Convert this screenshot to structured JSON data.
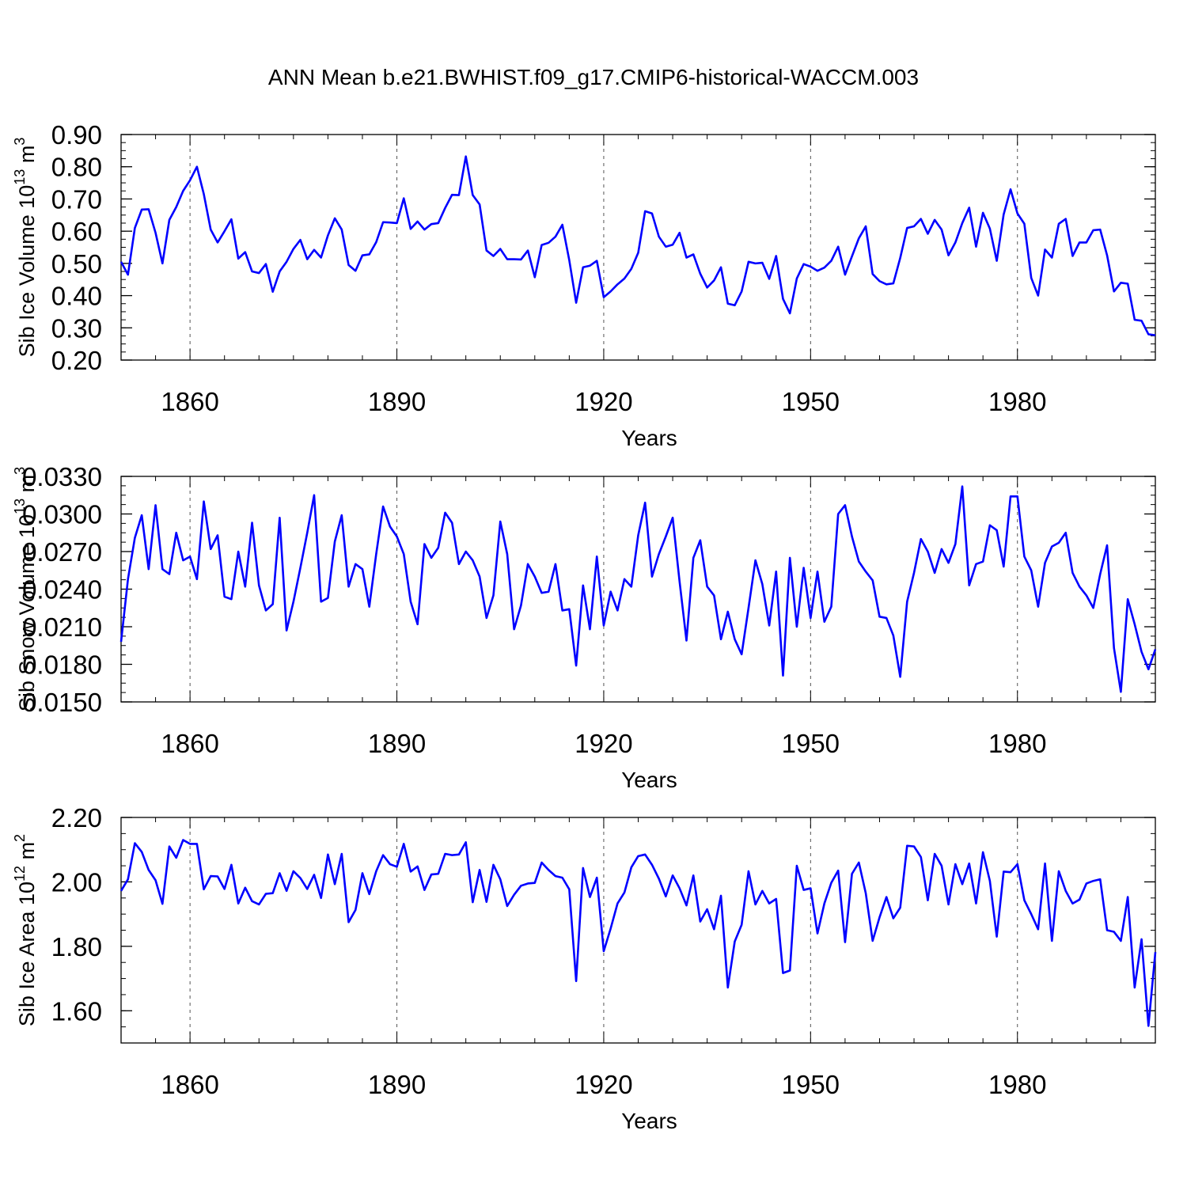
{
  "title": "ANN Mean b.e21.BWHIST.f09_g17.CMIP6-historical-WACCM.003",
  "colors": {
    "line": "#0000ff",
    "axis": "#000000",
    "gridline": "#555555"
  },
  "chart_data": [
    {
      "type": "line",
      "name": "sib-ice-volume",
      "ylabel": {
        "text": "Sib Ice Volume 10",
        "exp": "13",
        "unit": " m",
        "unit_exp": "3"
      },
      "xlabel": "Years",
      "xlim": [
        1850,
        2000
      ],
      "ylim": [
        0.2,
        0.9
      ],
      "yticks": [
        0.2,
        0.3,
        0.4,
        0.5,
        0.6,
        0.7,
        0.8,
        0.9
      ],
      "ytick_labels": [
        "0.20",
        "0.30",
        "0.40",
        "0.50",
        "0.60",
        "0.70",
        "0.80",
        "0.90"
      ],
      "xticks": [
        1860,
        1890,
        1920,
        1950,
        1980
      ],
      "xtick_labels": [
        "1860",
        "1890",
        "1920",
        "1950",
        "1980"
      ],
      "x_start": 1850,
      "values": [
        0.505,
        0.465,
        0.61,
        0.667,
        0.668,
        0.595,
        0.5,
        0.635,
        0.675,
        0.725,
        0.758,
        0.8,
        0.715,
        0.605,
        0.565,
        0.6,
        0.637,
        0.515,
        0.535,
        0.475,
        0.47,
        0.498,
        0.412,
        0.475,
        0.505,
        0.545,
        0.573,
        0.513,
        0.542,
        0.518,
        0.587,
        0.64,
        0.605,
        0.495,
        0.477,
        0.525,
        0.528,
        0.566,
        0.628,
        0.627,
        0.625,
        0.702,
        0.607,
        0.63,
        0.605,
        0.622,
        0.625,
        0.672,
        0.713,
        0.712,
        0.832,
        0.712,
        0.683,
        0.54,
        0.523,
        0.545,
        0.513,
        0.513,
        0.512,
        0.54,
        0.457,
        0.557,
        0.564,
        0.583,
        0.62,
        0.51,
        0.378,
        0.488,
        0.493,
        0.508,
        0.395,
        0.413,
        0.435,
        0.453,
        0.483,
        0.533,
        0.662,
        0.655,
        0.583,
        0.552,
        0.558,
        0.595,
        0.518,
        0.528,
        0.468,
        0.425,
        0.447,
        0.488,
        0.375,
        0.37,
        0.413,
        0.505,
        0.5,
        0.502,
        0.452,
        0.523,
        0.39,
        0.345,
        0.453,
        0.498,
        0.49,
        0.477,
        0.487,
        0.508,
        0.552,
        0.465,
        0.522,
        0.578,
        0.615,
        0.467,
        0.445,
        0.435,
        0.438,
        0.517,
        0.61,
        0.615,
        0.638,
        0.592,
        0.635,
        0.605,
        0.525,
        0.565,
        0.625,
        0.673,
        0.552,
        0.657,
        0.608,
        0.508,
        0.652,
        0.73,
        0.655,
        0.623,
        0.455,
        0.4,
        0.543,
        0.518,
        0.623,
        0.638,
        0.523,
        0.565,
        0.565,
        0.603,
        0.605,
        0.525,
        0.413,
        0.44,
        0.437,
        0.325,
        0.322,
        0.28,
        0.277
      ]
    },
    {
      "type": "line",
      "name": "sib-snow-volume",
      "ylabel": {
        "text": "Sib Snow Volume 10",
        "exp": "13",
        "unit": " m",
        "unit_exp": "3"
      },
      "xlabel": "Years",
      "xlim": [
        1850,
        2000
      ],
      "ylim": [
        0.015,
        0.033
      ],
      "yticks": [
        0.015,
        0.018,
        0.021,
        0.024,
        0.027,
        0.03,
        0.033
      ],
      "ytick_labels": [
        "0.0150",
        "0.0180",
        "0.0210",
        "0.0240",
        "0.0270",
        "0.0300",
        "0.0330"
      ],
      "xticks": [
        1860,
        1890,
        1920,
        1950,
        1980
      ],
      "xtick_labels": [
        "1860",
        "1890",
        "1920",
        "1950",
        "1980"
      ],
      "x_start": 1850,
      "values": [
        0.0198,
        0.0248,
        0.0281,
        0.0299,
        0.0256,
        0.0307,
        0.0256,
        0.0252,
        0.0285,
        0.0263,
        0.0266,
        0.0248,
        0.031,
        0.0272,
        0.0283,
        0.0234,
        0.0232,
        0.027,
        0.0242,
        0.0293,
        0.0243,
        0.0223,
        0.0228,
        0.0297,
        0.0207,
        0.023,
        0.0257,
        0.0285,
        0.0315,
        0.023,
        0.0233,
        0.0278,
        0.0299,
        0.0242,
        0.026,
        0.0256,
        0.0226,
        0.0268,
        0.0306,
        0.029,
        0.0282,
        0.0268,
        0.023,
        0.0212,
        0.0276,
        0.0265,
        0.0273,
        0.0301,
        0.0293,
        0.026,
        0.027,
        0.0263,
        0.025,
        0.0217,
        0.0235,
        0.0294,
        0.0268,
        0.0208,
        0.0227,
        0.026,
        0.025,
        0.0237,
        0.0238,
        0.026,
        0.0223,
        0.0224,
        0.0179,
        0.0243,
        0.0208,
        0.0266,
        0.0211,
        0.0238,
        0.0223,
        0.0248,
        0.0242,
        0.0283,
        0.0309,
        0.025,
        0.0268,
        0.0282,
        0.0297,
        0.0246,
        0.0199,
        0.0265,
        0.0279,
        0.0242,
        0.0235,
        0.02,
        0.0222,
        0.02,
        0.0188,
        0.0225,
        0.0263,
        0.0244,
        0.0211,
        0.0254,
        0.0171,
        0.0265,
        0.021,
        0.0257,
        0.0217,
        0.0254,
        0.0214,
        0.0226,
        0.03,
        0.0307,
        0.0282,
        0.0262,
        0.0254,
        0.0247,
        0.0218,
        0.0217,
        0.0203,
        0.017,
        0.023,
        0.0253,
        0.028,
        0.027,
        0.0253,
        0.0272,
        0.0261,
        0.0276,
        0.0322,
        0.0243,
        0.026,
        0.0262,
        0.0291,
        0.0287,
        0.0258,
        0.0314,
        0.0314,
        0.0266,
        0.0255,
        0.0226,
        0.0261,
        0.0274,
        0.0277,
        0.0285,
        0.0253,
        0.0242,
        0.0235,
        0.0225,
        0.0252,
        0.0275,
        0.0193,
        0.0158,
        0.0232,
        0.0212,
        0.019,
        0.0176,
        0.0192
      ]
    },
    {
      "type": "line",
      "name": "sib-ice-area",
      "ylabel": {
        "text": "Sib Ice Area 10",
        "exp": "12",
        "unit": " m",
        "unit_exp": "2"
      },
      "xlabel": "Years",
      "xlim": [
        1850,
        2000
      ],
      "ylim": [
        1.5,
        2.2
      ],
      "yticks": [
        1.6,
        1.8,
        2.0,
        2.2
      ],
      "ytick_labels": [
        "1.60",
        "1.80",
        "2.00",
        "2.20"
      ],
      "xticks": [
        1860,
        1890,
        1920,
        1950,
        1980
      ],
      "xtick_labels": [
        "1860",
        "1890",
        "1920",
        "1950",
        "1980"
      ],
      "x_start": 1850,
      "values": [
        1.972,
        2.008,
        2.12,
        2.093,
        2.037,
        2.005,
        1.932,
        2.11,
        2.075,
        2.13,
        2.118,
        2.118,
        1.977,
        2.018,
        2.017,
        1.978,
        2.053,
        1.933,
        1.982,
        1.94,
        1.93,
        1.963,
        1.965,
        2.027,
        1.972,
        2.033,
        2.012,
        1.978,
        2.022,
        1.95,
        2.085,
        1.993,
        2.087,
        1.875,
        1.913,
        2.027,
        1.962,
        2.033,
        2.083,
        2.055,
        2.047,
        2.118,
        2.032,
        2.048,
        1.975,
        2.023,
        2.025,
        2.087,
        2.083,
        2.085,
        2.123,
        1.937,
        2.037,
        1.938,
        2.053,
        2.008,
        1.925,
        1.96,
        1.988,
        1.995,
        1.997,
        2.06,
        2.037,
        2.018,
        2.013,
        1.977,
        1.692,
        2.043,
        1.953,
        2.013,
        1.785,
        1.855,
        1.933,
        1.967,
        2.045,
        2.08,
        2.085,
        2.053,
        2.01,
        1.955,
        2.02,
        1.98,
        1.927,
        2.02,
        1.877,
        1.915,
        1.853,
        1.957,
        1.672,
        1.815,
        1.867,
        2.033,
        1.93,
        1.972,
        1.933,
        1.947,
        1.717,
        1.725,
        2.05,
        1.975,
        1.98,
        1.84,
        1.933,
        1.997,
        2.035,
        1.813,
        2.025,
        2.06,
        1.965,
        1.817,
        1.89,
        1.953,
        1.887,
        1.92,
        2.112,
        2.11,
        2.077,
        1.943,
        2.087,
        2.05,
        1.93,
        2.055,
        1.993,
        2.057,
        1.933,
        2.092,
        2.003,
        1.83,
        2.032,
        2.03,
        2.055,
        1.943,
        1.9,
        1.853,
        2.057,
        1.817,
        2.033,
        1.972,
        1.933,
        1.945,
        1.995,
        2.003,
        2.008,
        1.85,
        1.845,
        1.817,
        1.953,
        1.672,
        1.822,
        1.553,
        1.782
      ]
    }
  ]
}
